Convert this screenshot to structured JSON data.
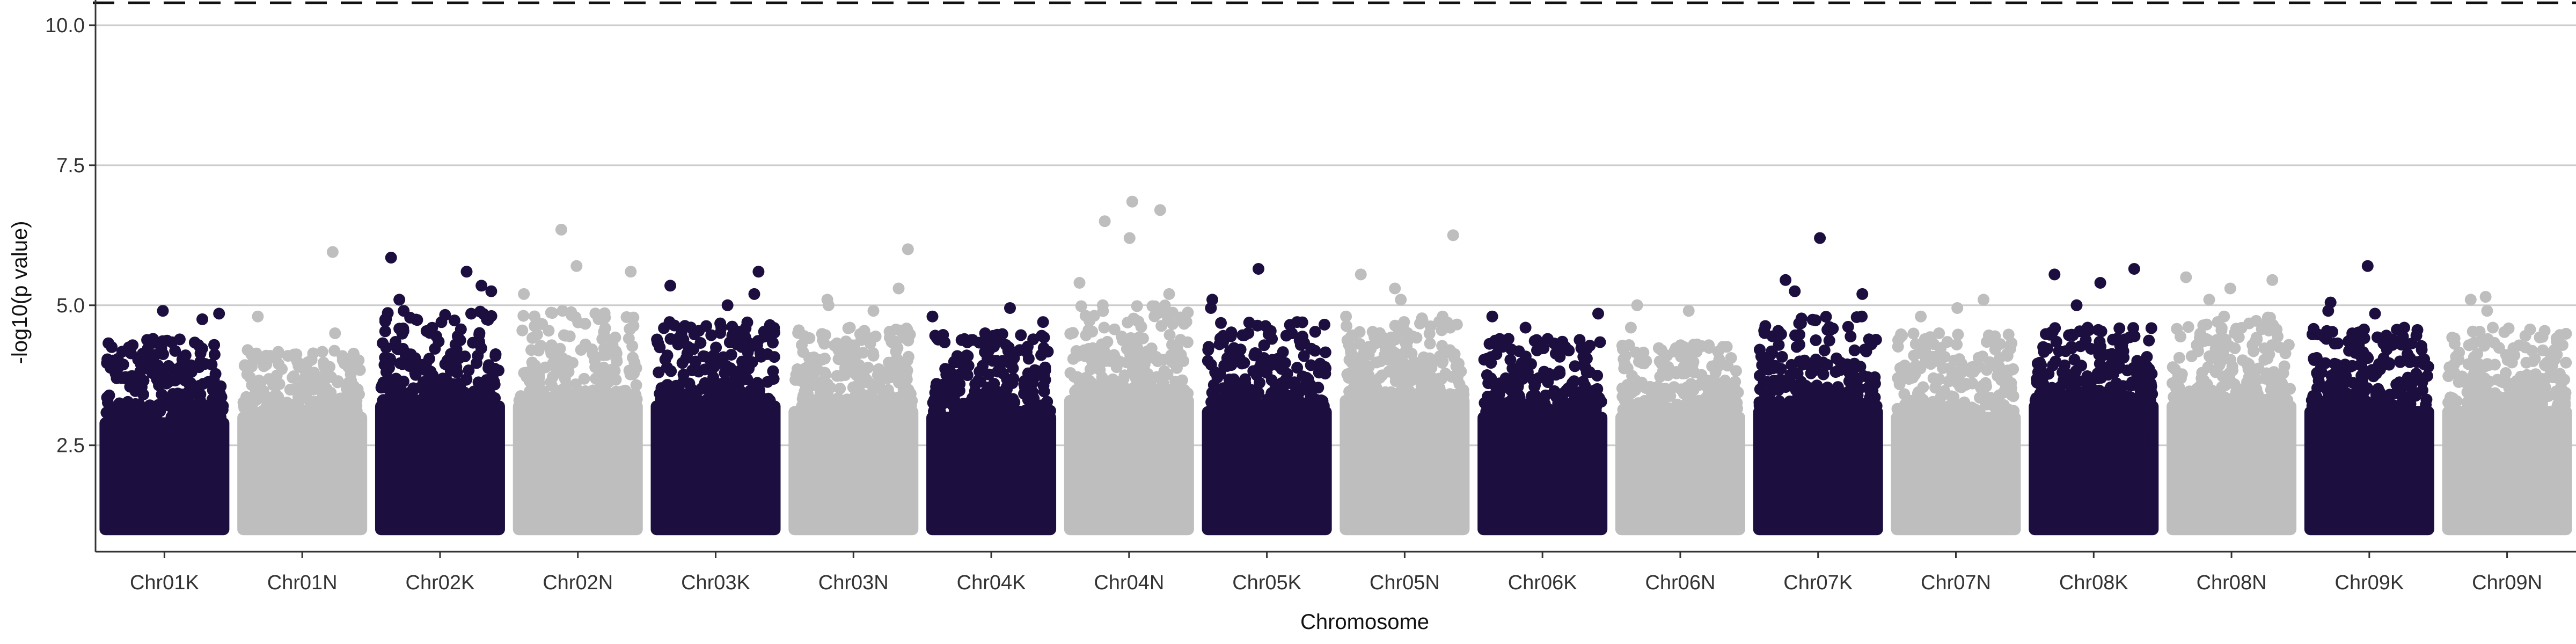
{
  "chart_data": {
    "type": "scatter",
    "title": "",
    "xlabel": "Chromosome",
    "ylabel": "-log10(p value)",
    "ylim": [
      0.6,
      10.45
    ],
    "yticks": [
      2.5,
      5.0,
      7.5,
      10.0
    ],
    "ytick_labels": [
      "2.5",
      "5.0",
      "7.5",
      "10.0"
    ],
    "grid": "horizontal major lines at y ticks",
    "legend": "none",
    "significance_threshold": 10.4,
    "threshold_style": "dashed black line",
    "colors": {
      "dark": "#1c0f3f",
      "light": "#bebebe",
      "grid": "#cccccc",
      "threshold": "#111111"
    },
    "chromosomes": [
      {
        "name": "Chr01K",
        "color": "dark",
        "dense_top": 3.0,
        "spread_top": 3.9,
        "top_hits": [
          4.4,
          4.75,
          4.85,
          4.9
        ]
      },
      {
        "name": "Chr01N",
        "color": "light",
        "dense_top": 3.1,
        "spread_top": 3.9,
        "top_hits": [
          4.2,
          4.5,
          4.8,
          5.95
        ]
      },
      {
        "name": "Chr02K",
        "color": "dark",
        "dense_top": 3.3,
        "spread_top": 4.2,
        "top_hits": [
          4.9,
          5.1,
          5.25,
          5.35,
          5.6,
          5.85
        ]
      },
      {
        "name": "Chr02N",
        "color": "light",
        "dense_top": 3.3,
        "spread_top": 4.2,
        "top_hits": [
          4.9,
          5.2,
          5.6,
          5.7,
          6.35
        ]
      },
      {
        "name": "Chr03K",
        "color": "dark",
        "dense_top": 3.3,
        "spread_top": 4.3,
        "top_hits": [
          4.7,
          5.0,
          5.2,
          5.35,
          5.6
        ]
      },
      {
        "name": "Chr03N",
        "color": "light",
        "dense_top": 3.2,
        "spread_top": 4.1,
        "top_hits": [
          4.6,
          4.9,
          5.0,
          5.1,
          5.3,
          6.0
        ]
      },
      {
        "name": "Chr04K",
        "color": "dark",
        "dense_top": 3.1,
        "spread_top": 4.0,
        "top_hits": [
          4.5,
          4.7,
          4.8,
          4.95
        ]
      },
      {
        "name": "Chr04N",
        "color": "light",
        "dense_top": 3.4,
        "spread_top": 4.3,
        "top_hits": [
          5.0,
          5.2,
          5.4,
          6.2,
          6.5,
          6.7,
          6.85
        ]
      },
      {
        "name": "Chr05K",
        "color": "dark",
        "dense_top": 3.2,
        "spread_top": 4.1,
        "top_hits": [
          4.7,
          4.95,
          5.1,
          5.65
        ]
      },
      {
        "name": "Chr05N",
        "color": "light",
        "dense_top": 3.4,
        "spread_top": 4.2,
        "top_hits": [
          4.8,
          5.1,
          5.3,
          5.55,
          6.25
        ]
      },
      {
        "name": "Chr06K",
        "color": "dark",
        "dense_top": 3.1,
        "spread_top": 3.9,
        "top_hits": [
          4.4,
          4.6,
          4.8,
          4.85
        ]
      },
      {
        "name": "Chr06N",
        "color": "light",
        "dense_top": 3.1,
        "spread_top": 3.9,
        "top_hits": [
          4.3,
          4.6,
          4.9,
          5.0
        ]
      },
      {
        "name": "Chr07K",
        "color": "dark",
        "dense_top": 3.2,
        "spread_top": 4.0,
        "top_hits": [
          4.8,
          5.2,
          5.25,
          5.45,
          6.2
        ]
      },
      {
        "name": "Chr07N",
        "color": "light",
        "dense_top": 3.1,
        "spread_top": 4.0,
        "top_hits": [
          4.5,
          4.8,
          4.95,
          5.1
        ]
      },
      {
        "name": "Chr08K",
        "color": "dark",
        "dense_top": 3.3,
        "spread_top": 4.1,
        "top_hits": [
          4.6,
          5.0,
          5.4,
          5.55,
          5.65
        ]
      },
      {
        "name": "Chr08N",
        "color": "light",
        "dense_top": 3.3,
        "spread_top": 4.2,
        "top_hits": [
          4.8,
          5.1,
          5.3,
          5.45,
          5.5
        ]
      },
      {
        "name": "Chr09K",
        "color": "dark",
        "dense_top": 3.2,
        "spread_top": 4.1,
        "top_hits": [
          4.6,
          4.85,
          4.9,
          5.05,
          5.7
        ]
      },
      {
        "name": "Chr09N",
        "color": "light",
        "dense_top": 3.2,
        "spread_top": 4.0,
        "top_hits": [
          4.6,
          4.9,
          5.1,
          5.15
        ]
      }
    ]
  }
}
